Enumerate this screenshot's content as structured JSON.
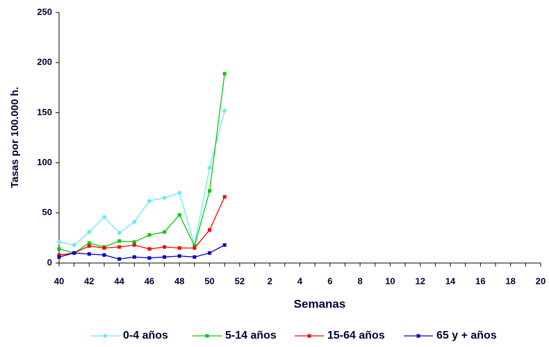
{
  "chart_data": {
    "type": "line",
    "x_label": "Semanas",
    "y_label": "Tasas por 100.000 h.",
    "categories": [
      "40",
      null,
      "42",
      null,
      "44",
      null,
      "46",
      null,
      "48",
      null,
      "50",
      null,
      "52",
      null,
      "2",
      null,
      "4",
      null,
      "6",
      null,
      "8",
      null,
      "10",
      null,
      "12",
      null,
      "14",
      null,
      "16",
      null,
      "18",
      null,
      "20"
    ],
    "series": [
      {
        "name": "0-4 años",
        "color": "#66e8f8",
        "marker": "diamond",
        "values": [
          21,
          18,
          31,
          46,
          30,
          41,
          62,
          65,
          70,
          18,
          95,
          152,
          null,
          null,
          null,
          null,
          null,
          null,
          null,
          null,
          null,
          null,
          null,
          null,
          null,
          null,
          null,
          null,
          null,
          null,
          null,
          null,
          null
        ]
      },
      {
        "name": "5-14 años",
        "color": "#00cc00",
        "marker": "square",
        "values": [
          14,
          10,
          20,
          16,
          22,
          21,
          28,
          31,
          48,
          17,
          72,
          189,
          null,
          null,
          null,
          null,
          null,
          null,
          null,
          null,
          null,
          null,
          null,
          null,
          null,
          null,
          null,
          null,
          null,
          null,
          null,
          null,
          null
        ]
      },
      {
        "name": "15-64 años",
        "color": "#ff0000",
        "marker": "square",
        "values": [
          8,
          10,
          17,
          15,
          16,
          18,
          14,
          16,
          15,
          15,
          33,
          66,
          null,
          null,
          null,
          null,
          null,
          null,
          null,
          null,
          null,
          null,
          null,
          null,
          null,
          null,
          null,
          null,
          null,
          null,
          null,
          null,
          null
        ]
      },
      {
        "name": "65 y + años",
        "color": "#0000cc",
        "marker": "square",
        "values": [
          6,
          10,
          9,
          8,
          4,
          6,
          5,
          6,
          7,
          6,
          10,
          18,
          null,
          null,
          null,
          null,
          null,
          null,
          null,
          null,
          null,
          null,
          null,
          null,
          null,
          null,
          null,
          null,
          null,
          null,
          null,
          null,
          null
        ]
      }
    ],
    "ylim": [
      0,
      250
    ],
    "yticks": [
      0,
      50,
      100,
      150,
      200,
      250
    ],
    "grid": false,
    "legend": "bottom"
  }
}
